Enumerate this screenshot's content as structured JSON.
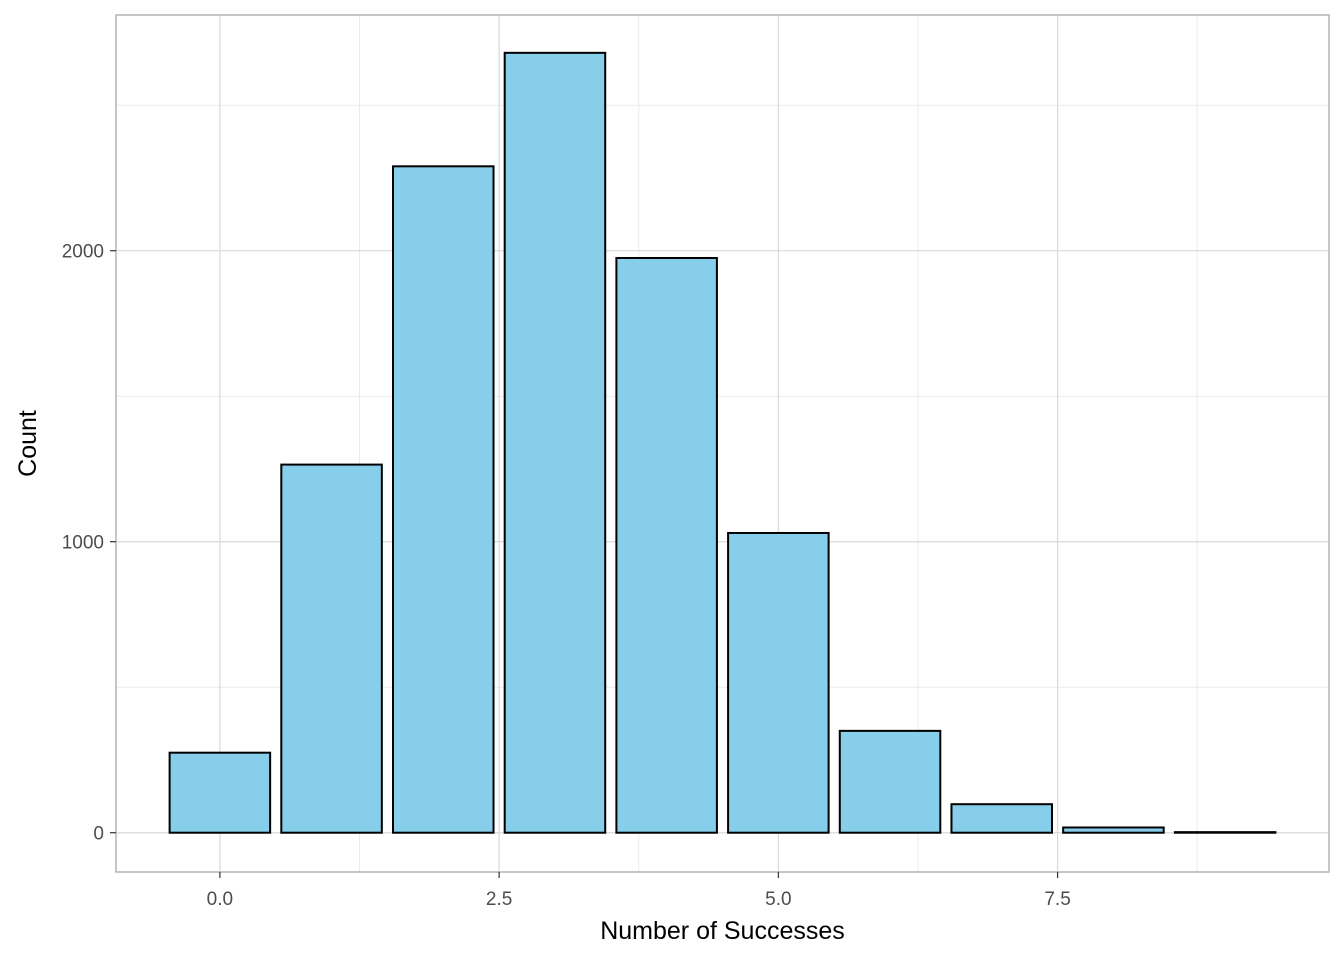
{
  "chart_data": {
    "type": "bar",
    "title": "",
    "xlabel": "Number of Successes",
    "ylabel": "Count",
    "x": [
      0,
      1,
      2,
      3,
      4,
      5,
      6,
      7,
      8,
      9
    ],
    "values": [
      275,
      1265,
      2290,
      2680,
      1975,
      1030,
      350,
      98,
      18,
      2
    ],
    "xlim": [
      -0.93,
      9.93
    ],
    "ylim": [
      -135,
      2810
    ],
    "x_ticks": [
      0,
      2.5,
      5,
      7.5
    ],
    "x_tick_labels": [
      "0.0",
      "2.5",
      "5.0",
      "7.5"
    ],
    "x_minor_ticks": [
      1.25,
      3.75,
      6.25,
      8.75
    ],
    "y_ticks": [
      0,
      1000,
      2000
    ],
    "y_tick_labels": [
      "0",
      "1000",
      "2000"
    ],
    "y_minor_ticks": [
      500,
      1500,
      2500
    ],
    "grid": true,
    "legend": "none",
    "colors": {
      "bar_fill": "#87CEEB",
      "bar_stroke": "#000000",
      "grid_major": "#d9d9d9",
      "grid_minor": "#ebebeb",
      "panel_border": "#b3b3b3"
    }
  }
}
